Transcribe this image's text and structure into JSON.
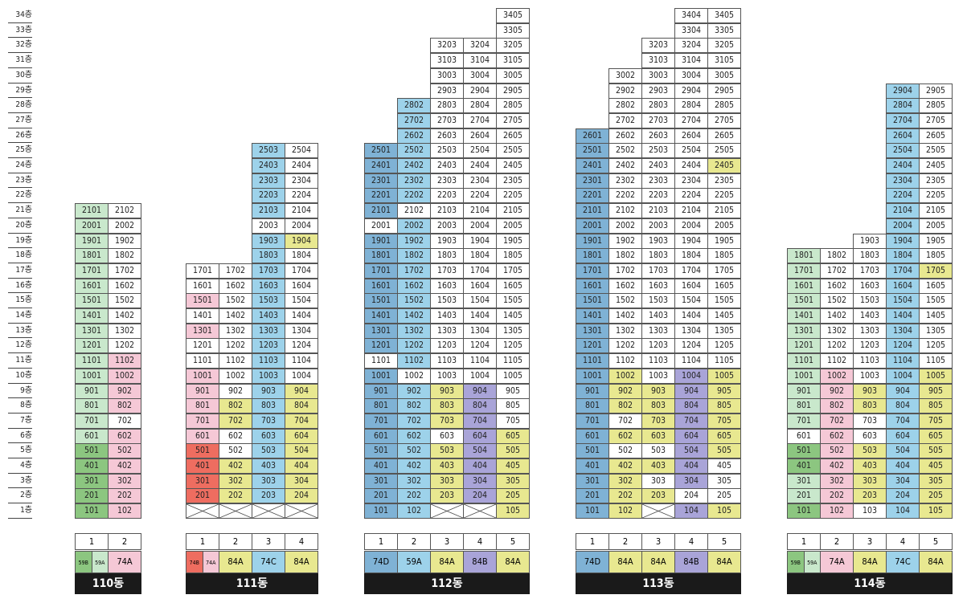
{
  "colors": {
    "G": "#c9e8cc",
    "D": "#8cc680",
    "P": "#f5c8d6",
    "R": "#ee6d60",
    "B": "#9dd2ea",
    "M": "#7fb2d5",
    "Y": "#e8e890",
    "V": "#a9a4d8",
    "W": "#ffffff"
  },
  "floors": [
    "34층",
    "33층",
    "32층",
    "31층",
    "30층",
    "29층",
    "28층",
    "27층",
    "26층",
    "25층",
    "24층",
    "23층",
    "22층",
    "21층",
    "20층",
    "19층",
    "18층",
    "17층",
    "16층",
    "15층",
    "14층",
    "13층",
    "12층",
    "11층",
    "10층",
    "9층",
    "8층",
    "7층",
    "6층",
    "5층",
    "4층",
    "3층",
    "2층",
    "1층"
  ],
  "buildings": [
    {
      "name": "110동",
      "lines": [
        {
          "no": "1",
          "floors": 21,
          "start": 1,
          "colors": "DDDDDGGGGGGGGGGGGGGGG"
        },
        {
          "no": "2",
          "floors": 21,
          "start": 1,
          "colors": "PPPPPPWPPPPWWWWWWWWWW"
        }
      ],
      "types": [
        {
          "label": "59B",
          "color": "D",
          "small": true
        },
        {
          "label": "59A",
          "color": "G",
          "small": true
        },
        {
          "label": "74A",
          "color": "P",
          "span": 1
        }
      ]
    },
    {
      "name": "111동",
      "lines": [
        {
          "no": "1",
          "floors": 17,
          "start": 2,
          "colors": "RRRRRPPPPPWWPWPWW"
        },
        {
          "no": "2",
          "floors": 17,
          "start": 2,
          "colors": "YYYYWWYYWWWWWWWWW"
        },
        {
          "no": "3",
          "floors": 25,
          "start": 2,
          "colors": "BBBBBBBBBBBBBBBBBBBWBBBBB"
        },
        {
          "no": "4",
          "floors": 25,
          "start": 2,
          "colors": "YYYYYYYYYWWWWWWWWWYWWWWWW"
        }
      ],
      "types": [
        {
          "label": "74B",
          "color": "R",
          "small": true
        },
        {
          "label": "74A",
          "color": "P",
          "small": true
        },
        {
          "label": "84A",
          "color": "Y"
        },
        {
          "label": "74C",
          "color": "B"
        },
        {
          "label": "84A",
          "color": "Y"
        }
      ]
    },
    {
      "name": "112동",
      "lines": [
        {
          "no": "1",
          "floors": 25,
          "start": 1,
          "colors": "MMMMMMMMMMWMMMMMMMMWMMMMM"
        },
        {
          "no": "2",
          "floors": 28,
          "start": 1,
          "colors": "BBBBBBBBBWBBBBBBBBBBWBBBBBBB"
        },
        {
          "no": "3",
          "floors": 32,
          "start": 2,
          "colors": "YYYYYWYYYWWWWWWWWWWWWWWWWWWWWWW"
        },
        {
          "no": "4",
          "floors": 32,
          "start": 2,
          "colors": "VVVVVVVVVWWWWWWWWWWWWWWWWWWWWWW"
        },
        {
          "no": "5",
          "floors": 34,
          "start": 1,
          "colors": "YYYYYYWWWWWWWWWWWWWWWWWWWWWWWWWWWW"
        }
      ],
      "types": [
        {
          "label": "74D",
          "color": "M"
        },
        {
          "label": "59A",
          "color": "B"
        },
        {
          "label": "84A",
          "color": "Y"
        },
        {
          "label": "84B",
          "color": "V"
        },
        {
          "label": "84A",
          "color": "Y"
        }
      ]
    },
    {
      "name": "113동",
      "lines": [
        {
          "no": "1",
          "floors": 26,
          "start": 1,
          "colors": "MMMMMMMMMMMMMMMMMMMMMMMMMM"
        },
        {
          "no": "2",
          "floors": 30,
          "start": 1,
          "colors": "YYYYWYWYYYWWWWWWWWWWWWWWWWWWWW"
        },
        {
          "no": "3",
          "floors": 32,
          "start": 2,
          "colors": "YYWYWYYYYWWWWWWWWWWWWWWWWWWWWWW"
        },
        {
          "no": "4",
          "floors": 34,
          "start": 1,
          "colors": "VWVVVVVVVVWWWWWWWWWWWWWWWWWWWWWWWW"
        },
        {
          "no": "5",
          "floors": 34,
          "start": 1,
          "colors": "YWWWYYYYYYWWWWWWWWWWWWWYWWWWWWWWWW"
        }
      ],
      "types": [
        {
          "label": "74D",
          "color": "M"
        },
        {
          "label": "84A",
          "color": "Y"
        },
        {
          "label": "84A",
          "color": "Y"
        },
        {
          "label": "84B",
          "color": "V"
        },
        {
          "label": "84A",
          "color": "Y"
        }
      ]
    },
    {
      "name": "114동",
      "lines": [
        {
          "no": "1",
          "floors": 18,
          "start": 1,
          "colors": "DGGDDWGGGGGGGGGGGG"
        },
        {
          "no": "2",
          "floors": 18,
          "start": 1,
          "colors": "PPPPPPPPPPWWWWWWWW"
        },
        {
          "no": "3",
          "floors": 19,
          "start": 1,
          "colors": "WYYYYWWYYWWWWWWWWWW"
        },
        {
          "no": "4",
          "floors": 29,
          "start": 1,
          "colors": "BBBBBBBBBBBBBBBBBBBBBBBBBBBBB"
        },
        {
          "no": "5",
          "floors": 29,
          "start": 1,
          "colors": "YYYYYYYYYYWWWWWWYWWWWWWWWWWWW"
        }
      ],
      "types": [
        {
          "label": "59B",
          "color": "D",
          "small": true
        },
        {
          "label": "59A",
          "color": "G",
          "small": true
        },
        {
          "label": "74A",
          "color": "P"
        },
        {
          "label": "84A",
          "color": "Y"
        },
        {
          "label": "74C",
          "color": "B"
        },
        {
          "label": "84A",
          "color": "Y"
        }
      ]
    }
  ]
}
